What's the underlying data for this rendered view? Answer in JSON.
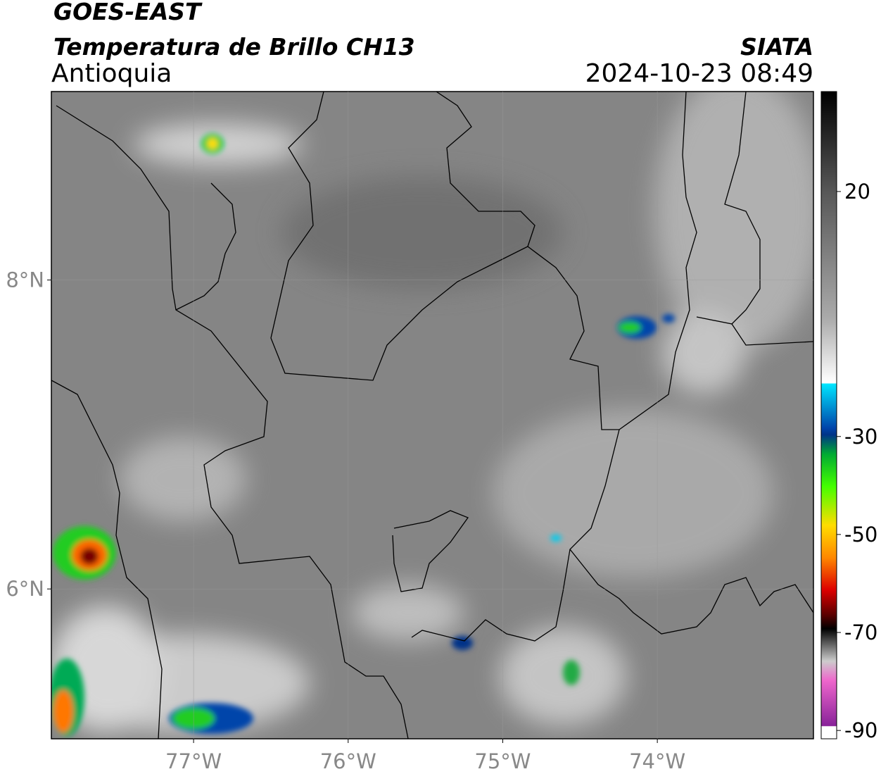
{
  "header": {
    "title": "GOES-EAST",
    "subtitle": "Temperatura de Brillo CH13",
    "region": "Antioquia",
    "source": "SIATA",
    "datetime": "2024-10-23 08:49"
  },
  "map": {
    "xlim": [
      -77.92,
      -72.99
    ],
    "ylim": [
      5.03,
      9.22
    ],
    "xticks": [
      {
        "value": -77,
        "label": "77°W"
      },
      {
        "value": -76,
        "label": "76°W"
      },
      {
        "value": -75,
        "label": "75°W"
      },
      {
        "value": -74,
        "label": "74°W"
      }
    ],
    "yticks": [
      {
        "value": 8,
        "label": "8°N"
      },
      {
        "value": 6,
        "label": "6°N"
      }
    ]
  },
  "colorbar": {
    "ylim": [
      -91.7,
      40.4
    ],
    "yticks": [
      20,
      -30,
      -50,
      -70,
      -90
    ]
  }
}
